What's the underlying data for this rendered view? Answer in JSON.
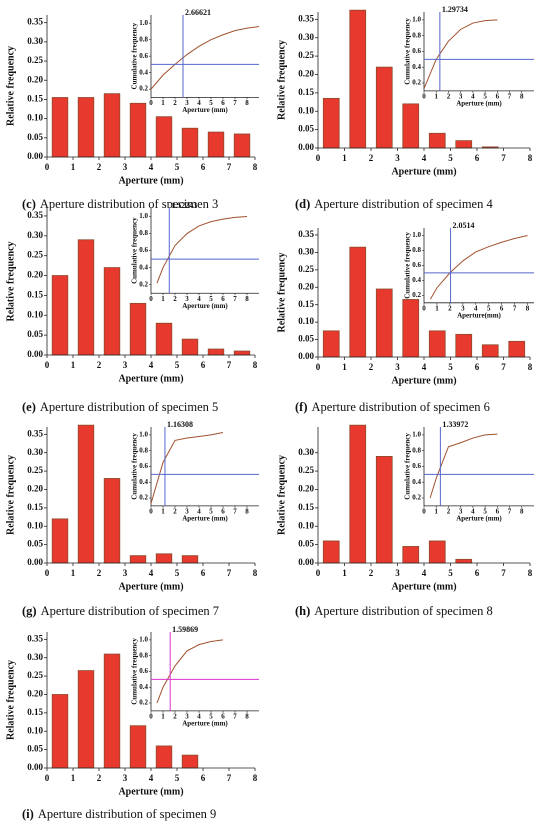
{
  "chart_data": [
    {
      "type": "bar",
      "caption_label": "(c)",
      "caption": "Aperture distribution of specimen 3",
      "xlabel": "Aperture  (mm)",
      "ylabel": "Relative frequency",
      "x": [
        0.5,
        1.5,
        2.5,
        3.5,
        4.5,
        5.5,
        6.5,
        7.5
      ],
      "values": [
        0.155,
        0.155,
        0.165,
        0.14,
        0.105,
        0.075,
        0.065,
        0.06
      ],
      "color": "#e8392f",
      "edge_color": "#8b4a2b",
      "xlim": [
        0,
        8
      ],
      "xticks": [
        0,
        1,
        2,
        3,
        4,
        5,
        6,
        7,
        8
      ],
      "ylim": [
        0,
        0.37
      ],
      "yticks": [
        {
          "value": 0,
          "label": "0.00"
        },
        0.05,
        {
          "value": 0.1,
          "label": "0.10"
        },
        0.15,
        {
          "value": 0.2,
          "label": "0.20"
        },
        0.25,
        {
          "value": 0.3,
          "label": "0.30"
        },
        0.35
      ],
      "inset": {
        "type": "line",
        "xlabel": "Aperture  (mm)",
        "ylabel": "Cumulative frequency",
        "x": [
          0,
          1,
          2,
          3,
          4,
          5,
          6,
          7,
          8,
          9
        ],
        "values": [
          0.2,
          0.37,
          0.5,
          0.62,
          0.72,
          0.8,
          0.86,
          0.91,
          0.94,
          0.96
        ],
        "color": "#a0522d",
        "xlim": [
          0,
          9
        ],
        "xticks": [
          0,
          1,
          2,
          3,
          4,
          5,
          6,
          7,
          8
        ],
        "ylim": [
          0.1,
          1.1
        ],
        "yticks": [
          0.2,
          0.4,
          0.6,
          0.8,
          {
            "value": 1,
            "label": "1.0"
          }
        ],
        "vline": 2.66621,
        "vline_label": "2.66621",
        "hline": 0.5,
        "line_color": "#5566cc"
      }
    },
    {
      "type": "bar",
      "caption_label": "(d)",
      "caption": "Aperture distribution of specimen 4",
      "xlabel": "Aperture  (mm)",
      "ylabel": "Relative frequency",
      "x": [
        0.5,
        1.5,
        2.5,
        3.5,
        4.5,
        5.5,
        6.5
      ],
      "values": [
        0.135,
        0.375,
        0.22,
        0.12,
        0.04,
        0.02,
        0.003
      ],
      "color": "#e8392f",
      "edge_color": "#8b4a2b",
      "xlim": [
        0,
        8
      ],
      "xticks": [
        0,
        1,
        2,
        3,
        4,
        5,
        6,
        7,
        8
      ],
      "ylim": [
        0,
        0.37
      ],
      "yticks": [
        {
          "value": 0,
          "label": "0.00"
        },
        0.05,
        {
          "value": 0.1,
          "label": "0.10"
        },
        0.15,
        {
          "value": 0.2,
          "label": "0.20"
        },
        0.25,
        {
          "value": 0.3,
          "label": "0.30"
        },
        0.35
      ],
      "inset": {
        "type": "line",
        "xlabel": "Aperture  (mm)",
        "ylabel": "Cumulative frequency",
        "x": [
          0,
          1,
          2,
          3,
          4,
          5,
          6
        ],
        "values": [
          0.13,
          0.5,
          0.73,
          0.88,
          0.96,
          0.99,
          1.0
        ],
        "color": "#a0522d",
        "xlim": [
          0,
          9
        ],
        "xticks": [
          0,
          1,
          2,
          3,
          4,
          5,
          6,
          7,
          8
        ],
        "ylim": [
          0.1,
          1.1
        ],
        "yticks": [
          0.2,
          0.4,
          0.6,
          0.8,
          {
            "value": 1,
            "label": "1.0"
          }
        ],
        "vline": 1.29734,
        "vline_label": "1.29734",
        "hline": 0.5,
        "line_color": "#5566cc"
      }
    },
    {
      "type": "bar",
      "caption_label": "(e)",
      "caption": "Aperture distribution of specimen 5",
      "xlabel": "Aperture  (mm)",
      "ylabel": "Relative frequency",
      "x": [
        0.5,
        1.5,
        2.5,
        3.5,
        4.5,
        5.5,
        6.5,
        7.5
      ],
      "values": [
        0.2,
        0.29,
        0.22,
        0.13,
        0.08,
        0.04,
        0.015,
        0.01
      ],
      "color": "#e8392f",
      "edge_color": "#8b4a2b",
      "xlim": [
        0,
        8
      ],
      "xticks": [
        0,
        1,
        2,
        3,
        4,
        5,
        6,
        7,
        8
      ],
      "ylim": [
        0,
        0.37
      ],
      "yticks": [
        {
          "value": 0,
          "label": "0.00"
        },
        0.05,
        {
          "value": 0.1,
          "label": "0.10"
        },
        0.15,
        {
          "value": 0.2,
          "label": "0.20"
        },
        0.25,
        {
          "value": 0.3,
          "label": "0.30"
        },
        0.35
      ],
      "inset": {
        "type": "line",
        "xlabel": "Aperture  (mm)",
        "ylabel": "Cumulative frequency",
        "x": [
          0.5,
          1,
          2,
          3,
          4,
          5,
          6,
          7,
          8
        ],
        "values": [
          0.22,
          0.4,
          0.66,
          0.8,
          0.89,
          0.94,
          0.97,
          0.99,
          1.0
        ],
        "color": "#a0522d",
        "xlim": [
          0,
          9
        ],
        "xticks": [
          0,
          1,
          2,
          3,
          4,
          5,
          6,
          7,
          8
        ],
        "ylim": [
          0.1,
          1.1
        ],
        "yticks": [
          0.2,
          0.4,
          0.6,
          0.8,
          {
            "value": 1,
            "label": "1.0"
          }
        ],
        "vline": 1.52243,
        "vline_label": "1.52243",
        "hline": 0.5,
        "line_color": "#5566cc"
      }
    },
    {
      "type": "bar",
      "caption_label": "(f)",
      "caption": "Aperture distribution of specimen 6",
      "xlabel": "Aperture  (mm)",
      "ylabel": "Relative frequency",
      "x": [
        0.5,
        1.5,
        2.5,
        3.5,
        4.5,
        5.5,
        6.5,
        7.5
      ],
      "values": [
        0.075,
        0.315,
        0.195,
        0.165,
        0.075,
        0.065,
        0.035,
        0.045
      ],
      "color": "#e8392f",
      "edge_color": "#8b4a2b",
      "xlim": [
        0,
        8
      ],
      "xticks": [
        0,
        1,
        2,
        3,
        4,
        5,
        6,
        7,
        8
      ],
      "ylim": [
        0,
        0.37
      ],
      "yticks": [
        {
          "value": 0,
          "label": "0.00"
        },
        0.05,
        {
          "value": 0.1,
          "label": "0.10"
        },
        0.15,
        {
          "value": 0.2,
          "label": "0.20"
        },
        0.25,
        {
          "value": 0.3,
          "label": "0.30"
        },
        0.35
      ],
      "inset": {
        "type": "line",
        "xlabel": "Aperture(mm)",
        "ylabel": "Cumulative frequency",
        "x": [
          0.5,
          1,
          2,
          3,
          4,
          5,
          6,
          7,
          8
        ],
        "values": [
          0.15,
          0.3,
          0.5,
          0.66,
          0.78,
          0.85,
          0.91,
          0.96,
          1.0
        ],
        "color": "#a0522d",
        "xlim": [
          0,
          8.5
        ],
        "xticks": [
          0,
          1,
          2,
          3,
          4,
          5,
          6,
          7,
          8
        ],
        "ylim": [
          0.1,
          1.1
        ],
        "yticks": [
          0.2,
          0.4,
          0.6,
          0.8,
          {
            "value": 1,
            "label": "1.0"
          }
        ],
        "vline": 2.0514,
        "vline_label": "2.0514",
        "hline": 0.5,
        "line_color": "#5566cc"
      }
    },
    {
      "type": "bar",
      "caption_label": "(g)",
      "caption": "Aperture distribution of specimen 7",
      "xlabel": "Aperture  (mm)",
      "ylabel": "Relative frequency",
      "x": [
        0.5,
        1.5,
        2.5,
        3.5,
        4.5,
        5.5
      ],
      "values": [
        0.12,
        0.375,
        0.23,
        0.02,
        0.025,
        0.02
      ],
      "color": "#e8392f",
      "edge_color": "#8b4a2b",
      "xlim": [
        0,
        8
      ],
      "xticks": [
        0,
        1,
        2,
        3,
        4,
        5,
        6,
        7,
        8
      ],
      "ylim": [
        0,
        0.37
      ],
      "yticks": [
        {
          "value": 0,
          "label": "0.00"
        },
        0.05,
        {
          "value": 0.1,
          "label": "0.10"
        },
        0.15,
        {
          "value": 0.2,
          "label": "0.20"
        },
        0.25,
        {
          "value": 0.3,
          "label": "0.30"
        },
        0.35
      ],
      "inset": {
        "type": "line",
        "xlabel": "Aperture  (mm)",
        "ylabel": "Cumulative frequency",
        "x": [
          0,
          1,
          2,
          3,
          4,
          5,
          6
        ],
        "values": [
          0.13,
          0.65,
          0.93,
          0.96,
          0.98,
          1.0,
          1.03
        ],
        "color": "#a0522d",
        "xlim": [
          0,
          9
        ],
        "xticks": [
          0,
          1,
          2,
          3,
          4,
          5,
          6,
          7,
          8
        ],
        "ylim": [
          0.1,
          1.1
        ],
        "yticks": [
          0.2,
          0.4,
          0.6,
          0.8,
          {
            "value": 1,
            "label": "1.0"
          }
        ],
        "vline": 1.16308,
        "vline_label": "1.16308",
        "hline": 0.5,
        "line_color": "#5566cc"
      }
    },
    {
      "type": "bar",
      "caption_label": "(h)",
      "caption": "Aperture distribution of specimen 8",
      "xlabel": "Aperture  (mm)",
      "ylabel": "Relative frequency",
      "x": [
        0.5,
        1.5,
        2.5,
        3.5,
        4.5,
        5.5
      ],
      "values": [
        0.06,
        0.375,
        0.29,
        0.045,
        0.06,
        0.01
      ],
      "color": "#e8392f",
      "edge_color": "#8b4a2b",
      "xlim": [
        0,
        8
      ],
      "xticks": [
        0,
        1,
        2,
        3,
        4,
        5,
        6,
        7,
        8
      ],
      "ylim": [
        0,
        0.37
      ],
      "yticks": [
        {
          "value": 0,
          "label": "0.00"
        },
        0.05,
        {
          "value": 0.1,
          "label": "0.10"
        },
        0.15,
        {
          "value": 0.2,
          "label": "0.20"
        },
        0.25,
        {
          "value": 0.3,
          "label": "0.30"
        }
      ],
      "inset": {
        "type": "line",
        "xlabel": "Aperture  (mm)",
        "ylabel": "Cumulative frequency",
        "x": [
          0.5,
          1,
          2,
          3,
          4,
          5,
          6
        ],
        "values": [
          0.2,
          0.45,
          0.85,
          0.9,
          0.96,
          1.0,
          1.01
        ],
        "color": "#a0522d",
        "xlim": [
          0,
          9
        ],
        "xticks": [
          0,
          1,
          2,
          3,
          4,
          5,
          6,
          7,
          8
        ],
        "ylim": [
          0.1,
          1.1
        ],
        "yticks": [
          0.2,
          0.4,
          0.6,
          0.8,
          {
            "value": 1,
            "label": "1.0"
          }
        ],
        "vline": 1.33972,
        "vline_label": "1.33972",
        "hline": 0.5,
        "line_color": "#5566cc"
      }
    },
    {
      "type": "bar",
      "caption_label": "(i)",
      "caption": "Aperture distribution of specimen 9",
      "xlabel": "Aperture  (mm)",
      "ylabel": "Relative frequency",
      "x": [
        0.5,
        1.5,
        2.5,
        3.5,
        4.5,
        5.5
      ],
      "values": [
        0.2,
        0.265,
        0.31,
        0.115,
        0.06,
        0.035
      ],
      "color": "#e8392f",
      "edge_color": "#8b4a2b",
      "xlim": [
        0,
        8
      ],
      "xticks": [
        0,
        1,
        2,
        3,
        4,
        5,
        6,
        7,
        8
      ],
      "ylim": [
        0,
        0.37
      ],
      "yticks": [
        {
          "value": 0,
          "label": "0.00"
        },
        0.05,
        {
          "value": 0.1,
          "label": "0.10"
        },
        0.15,
        {
          "value": 0.2,
          "label": "0.20"
        },
        0.25,
        {
          "value": 0.3,
          "label": "0.30"
        },
        0.35
      ],
      "inset": {
        "type": "line",
        "xlabel": "Aperture  (mm)",
        "ylabel": "Cumulative frequency",
        "x": [
          0.5,
          1,
          2,
          3,
          4,
          5,
          6
        ],
        "values": [
          0.2,
          0.4,
          0.67,
          0.86,
          0.94,
          0.98,
          1.0
        ],
        "color": "#a0522d",
        "xlim": [
          0,
          9
        ],
        "xticks": [
          0,
          1,
          2,
          3,
          4,
          5,
          6,
          7,
          8
        ],
        "ylim": [
          0.1,
          1.1
        ],
        "yticks": [
          0.2,
          0.4,
          0.6,
          0.8,
          {
            "value": 1,
            "label": "1.0"
          }
        ],
        "vline": 1.59869,
        "vline_label": "1.59869",
        "hline": 0.5,
        "line_color": "#dd33cc"
      }
    }
  ]
}
